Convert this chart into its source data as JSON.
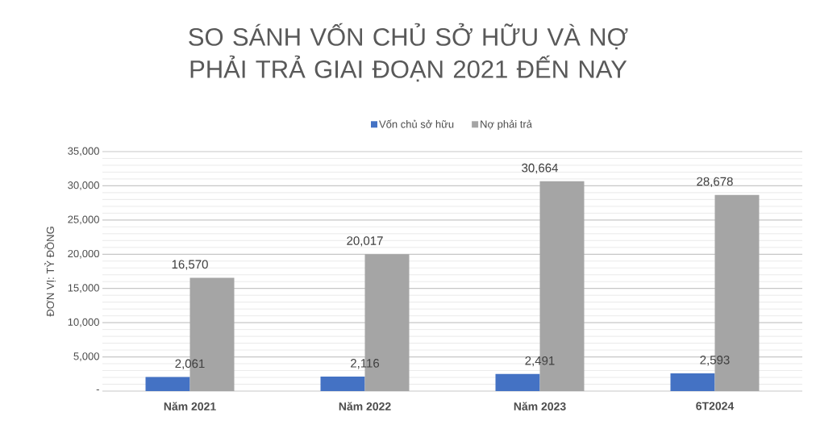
{
  "chart_data": {
    "type": "bar",
    "title": "SO SÁNH VỐN CHỦ SỞ HỮU VÀ NỢ PHẢI TRẢ GIAI ĐOẠN 2021 ĐẾN NAY",
    "ylabel": "ĐƠN VỊ: TỶ ĐỒNG",
    "categories": [
      "Năm 2021",
      "Năm 2022",
      "Năm 2023",
      "6T2024"
    ],
    "series": [
      {
        "name": "Vốn chủ sở hữu",
        "color": "#4472c4",
        "values": [
          2061,
          2116,
          2491,
          2593
        ],
        "value_labels": [
          "2,061",
          "2,116",
          "2,491",
          "2,593"
        ]
      },
      {
        "name": "Nợ phải trả",
        "color": "#a5a5a5",
        "values": [
          16570,
          20017,
          30664,
          28678
        ],
        "value_labels": [
          "16,570",
          "20,017",
          "30,664",
          "28,678"
        ]
      }
    ],
    "ylim": [
      0,
      35000
    ],
    "yticks": [
      {
        "value": 0,
        "label": "-"
      },
      {
        "value": 5000,
        "label": "5,000"
      },
      {
        "value": 10000,
        "label": "10,000"
      },
      {
        "value": 15000,
        "label": "15,000"
      },
      {
        "value": 20000,
        "label": "20,000"
      },
      {
        "value": 25000,
        "label": "25,000"
      },
      {
        "value": 30000,
        "label": "30,000"
      },
      {
        "value": 35000,
        "label": "35,000"
      }
    ],
    "grid": "y",
    "legend": "top"
  }
}
